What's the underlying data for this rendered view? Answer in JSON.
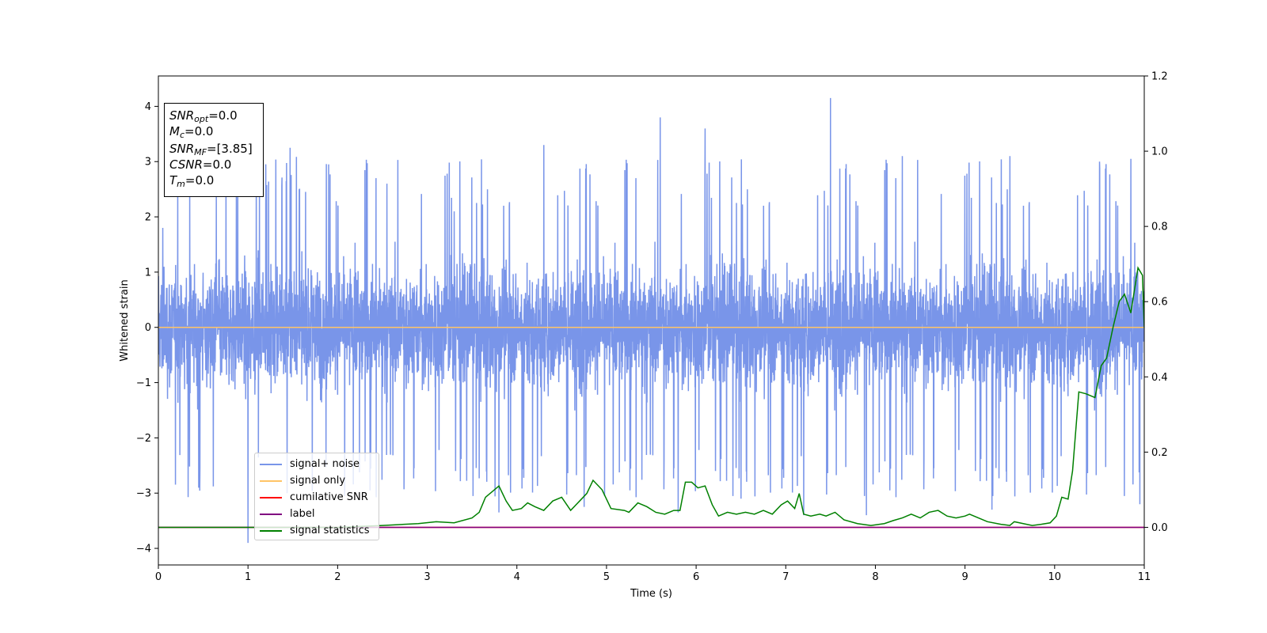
{
  "chart_data": {
    "type": "line",
    "xlabel": "Time (s)",
    "ylabel": "Whitened strain",
    "xlim": [
      0,
      11
    ],
    "ylim": [
      -4.3,
      4.55
    ],
    "y2lim": [
      -0.1,
      1.2
    ],
    "xticks": [
      "0",
      "1",
      "2",
      "3",
      "4",
      "5",
      "6",
      "7",
      "8",
      "9",
      "10",
      "11"
    ],
    "yticks": [
      "−4",
      "−3",
      "−2",
      "−1",
      "0",
      "1",
      "2",
      "3",
      "4"
    ],
    "y2ticks": [
      "0.0",
      "0.2",
      "0.4",
      "0.6",
      "0.8",
      "1.0",
      "1.2"
    ],
    "series": [
      {
        "name": "signal+ noise",
        "color": "#7995e9",
        "axis": "left",
        "description_values": "dense noise, roughly symmetric about 0, envelope about ±2.3 with spikes up to 4.15 near t=7.5 and down to -3.9 near t=1.0",
        "peaks": [
          [
            0.05,
            1.8
          ],
          [
            0.35,
            2.5
          ],
          [
            1.0,
            -3.9
          ],
          [
            1.47,
            3.25
          ],
          [
            1.9,
            2.95
          ],
          [
            2.55,
            2.6
          ],
          [
            3.3,
            2.1
          ],
          [
            3.8,
            -3.35
          ],
          [
            4.3,
            3.3
          ],
          [
            4.75,
            -3.25
          ],
          [
            5.6,
            3.8
          ],
          [
            5.8,
            -3.35
          ],
          [
            6.1,
            3.6
          ],
          [
            6.5,
            -3.1
          ],
          [
            7.2,
            -3.4
          ],
          [
            7.5,
            4.15
          ],
          [
            7.9,
            -3.4
          ],
          [
            8.3,
            3.1
          ],
          [
            9.3,
            -3.3
          ],
          [
            9.5,
            3.1
          ],
          [
            10.5,
            3.0
          ],
          [
            10.85,
            3.05
          ],
          [
            10.95,
            -3.2
          ]
        ]
      },
      {
        "name": "signal only",
        "color": "#ffc466",
        "axis": "left",
        "x": [
          0,
          11
        ],
        "y": [
          0,
          0
        ]
      },
      {
        "name": "cumilative SNR",
        "color": "#ff0000",
        "axis": "right",
        "x": [
          0,
          11
        ],
        "y": [
          0,
          0
        ]
      },
      {
        "name": "label",
        "color": "#800080",
        "axis": "right",
        "x": [
          0,
          11
        ],
        "y": [
          0,
          0
        ]
      },
      {
        "name": "signal statistics",
        "color": "#008000",
        "axis": "right",
        "x": [
          0,
          0.5,
          1.0,
          1.5,
          2.0,
          2.5,
          2.9,
          3.1,
          3.3,
          3.5,
          3.58,
          3.65,
          3.75,
          3.8,
          3.88,
          3.95,
          4.05,
          4.12,
          4.2,
          4.3,
          4.4,
          4.5,
          4.6,
          4.7,
          4.78,
          4.85,
          4.95,
          5.05,
          5.2,
          5.25,
          5.35,
          5.45,
          5.55,
          5.65,
          5.75,
          5.82,
          5.88,
          5.95,
          6.02,
          6.1,
          6.18,
          6.25,
          6.35,
          6.45,
          6.55,
          6.65,
          6.75,
          6.85,
          6.95,
          7.02,
          7.1,
          7.15,
          7.2,
          7.28,
          7.38,
          7.45,
          7.55,
          7.65,
          7.8,
          7.95,
          8.1,
          8.2,
          8.3,
          8.4,
          8.5,
          8.6,
          8.7,
          8.8,
          8.9,
          9.0,
          9.05,
          9.15,
          9.25,
          9.4,
          9.5,
          9.55,
          9.65,
          9.75,
          9.85,
          9.95,
          10.02,
          10.08,
          10.15,
          10.2,
          10.27,
          10.35,
          10.45,
          10.52,
          10.58,
          10.65,
          10.72,
          10.78,
          10.85,
          10.93,
          10.98,
          11.0
        ],
        "y": [
          0.0,
          0.0,
          0.0,
          0.0,
          0.0,
          0.005,
          0.01,
          0.015,
          0.012,
          0.025,
          0.04,
          0.08,
          0.1,
          0.11,
          0.07,
          0.045,
          0.05,
          0.065,
          0.055,
          0.045,
          0.07,
          0.08,
          0.045,
          0.07,
          0.09,
          0.125,
          0.1,
          0.05,
          0.045,
          0.04,
          0.065,
          0.055,
          0.04,
          0.035,
          0.045,
          0.045,
          0.12,
          0.12,
          0.105,
          0.11,
          0.06,
          0.03,
          0.04,
          0.035,
          0.04,
          0.035,
          0.045,
          0.035,
          0.06,
          0.07,
          0.05,
          0.09,
          0.035,
          0.03,
          0.035,
          0.03,
          0.04,
          0.02,
          0.01,
          0.005,
          0.01,
          0.018,
          0.025,
          0.035,
          0.025,
          0.04,
          0.045,
          0.03,
          0.025,
          0.03,
          0.035,
          0.025,
          0.015,
          0.008,
          0.005,
          0.015,
          0.01,
          0.005,
          0.008,
          0.012,
          0.03,
          0.08,
          0.075,
          0.15,
          0.36,
          0.355,
          0.345,
          0.43,
          0.45,
          0.53,
          0.6,
          0.62,
          0.57,
          0.69,
          0.67,
          0.53
        ]
      }
    ],
    "legend": {
      "placement": "lower-left",
      "entries": [
        "signal+ noise",
        "signal only",
        "cumilative SNR",
        "label",
        "signal statistics"
      ]
    },
    "annotation": {
      "placement": "top-left",
      "lines": [
        {
          "sym": "SNR",
          "sub": "opt",
          "val": "=0.0"
        },
        {
          "sym": "M",
          "sub": "c",
          "val": "=0.0"
        },
        {
          "sym": "SNR",
          "sub": "MF",
          "val": "=[3.85]"
        },
        {
          "sym": "CSNR",
          "sub": "",
          "val": "=0.0"
        },
        {
          "sym": "T",
          "sub": "m",
          "val": "=0.0"
        }
      ]
    }
  }
}
